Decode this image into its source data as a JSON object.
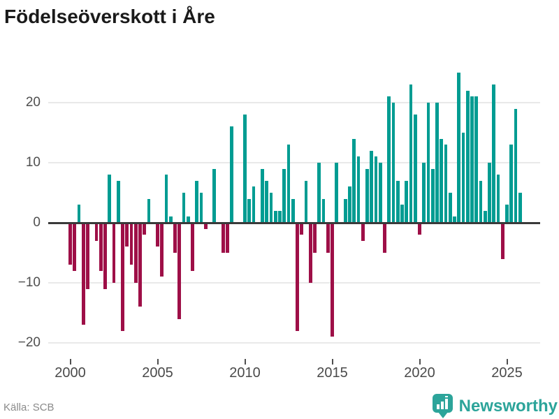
{
  "title": "Födelseöverskott i Åre",
  "source": "Källa: SCB",
  "brand": {
    "name": "Newsworthy",
    "icon": "bar-chart-speech-bubble-icon"
  },
  "colors": {
    "positive_bar": "#009c92",
    "negative_bar": "#9e0f47",
    "zero_line": "#3a3a3a",
    "gridline": "#e9e9e9",
    "title_text": "#1a1a1a",
    "axis_text": "#4a4a4a",
    "source_text": "#8a8a8a",
    "brand_teal": "#2ca49a"
  },
  "chart_data": {
    "type": "bar",
    "title": "Födelseöverskott i Åre",
    "xlabel": "",
    "ylabel": "",
    "frequency": "quarterly",
    "start_year": 2000,
    "ylim": [
      -22,
      26
    ],
    "grid": true,
    "y_ticks": [
      {
        "value": 20,
        "label": "20"
      },
      {
        "value": 10,
        "label": "10"
      },
      {
        "value": 0,
        "label": "0"
      },
      {
        "value": -10,
        "label": "−10"
      },
      {
        "value": -20,
        "label": "−20"
      }
    ],
    "x_ticks": [
      {
        "year": 2000,
        "label": "2000"
      },
      {
        "year": 2005,
        "label": "2005"
      },
      {
        "year": 2010,
        "label": "2010"
      },
      {
        "year": 2015,
        "label": "2015"
      },
      {
        "year": 2020,
        "label": "2020"
      },
      {
        "year": 2025,
        "label": "2025"
      }
    ],
    "values": [
      -7,
      -8,
      3,
      -17,
      -11,
      0,
      -3,
      -8,
      -11,
      8,
      -10,
      7,
      -18,
      -4,
      -7,
      -10,
      -14,
      -2,
      4,
      0,
      -4,
      -9,
      8,
      1,
      -5,
      -16,
      5,
      1,
      -8,
      7,
      5,
      -1,
      0,
      9,
      0,
      -5,
      -5,
      16,
      0,
      0,
      18,
      4,
      6,
      0,
      9,
      7,
      5,
      2,
      2,
      9,
      13,
      4,
      -18,
      -2,
      7,
      -10,
      -5,
      10,
      4,
      -5,
      -19,
      10,
      0,
      4,
      6,
      14,
      11,
      -3,
      9,
      12,
      11,
      10,
      -5,
      21,
      20,
      7,
      3,
      7,
      23,
      18,
      -2,
      10,
      20,
      9,
      20,
      14,
      13,
      5,
      1,
      25,
      15,
      22,
      21,
      21,
      7,
      2,
      10,
      23,
      8,
      -6,
      3,
      13,
      19,
      5
    ]
  }
}
